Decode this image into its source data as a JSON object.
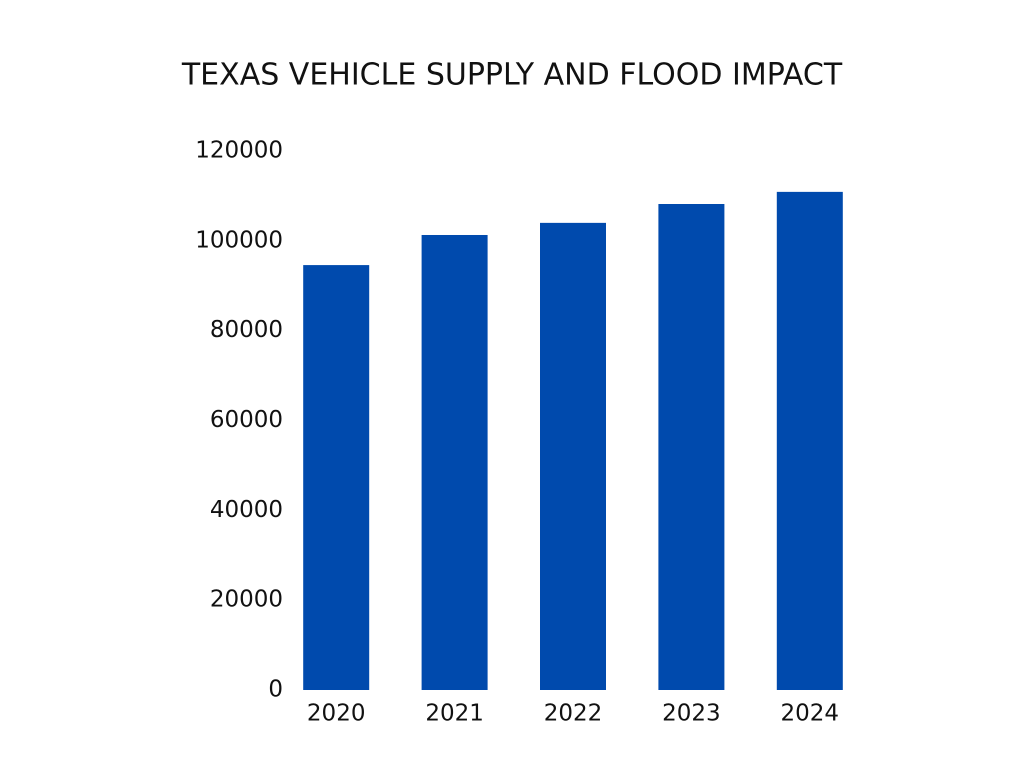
{
  "chart_data": {
    "type": "bar",
    "title": "TEXAS VEHICLE SUPPLY AND FLOOD IMPACT",
    "categories": [
      "2020",
      "2021",
      "2022",
      "2023",
      "2024"
    ],
    "values": [
      94600,
      101300,
      104000,
      108200,
      110900
    ],
    "color": "#004aad",
    "ylim": [
      0,
      120000
    ],
    "yticks": [
      0,
      20000,
      40000,
      60000,
      80000,
      100000,
      120000
    ],
    "grid": false
  }
}
